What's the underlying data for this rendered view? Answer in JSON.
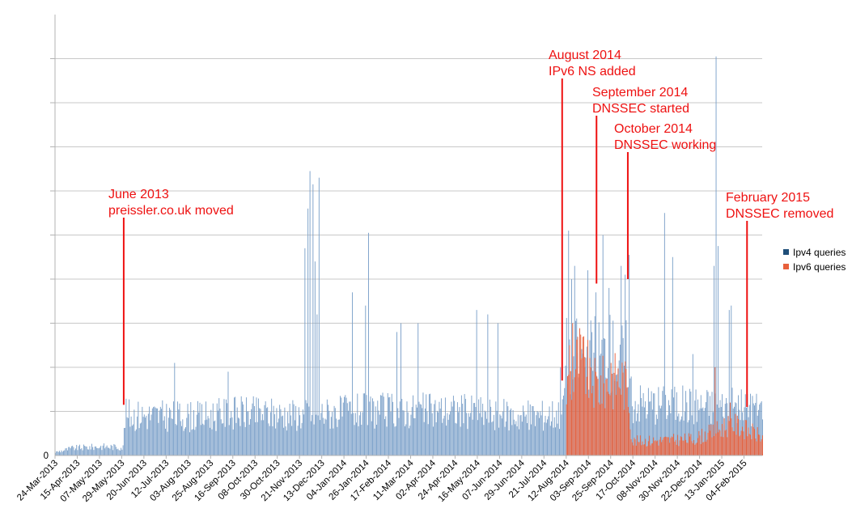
{
  "chart_data": {
    "type": "bar",
    "title": "",
    "xlabel": "",
    "ylabel": "",
    "ylim": [
      0,
      1000
    ],
    "y_tick_values": [
      0,
      100,
      200,
      300,
      400,
      500,
      600,
      700,
      800,
      900
    ],
    "y_tick_labels": [
      "0"
    ],
    "grid": true,
    "legend_position": "right",
    "x_range": [
      "2013-03-24",
      "2015-02-22"
    ],
    "x_tick_labels": [
      "24-Mar-2013",
      "15-Apr-2013",
      "07-May-2013",
      "29-May-2013",
      "20-Jun-2013",
      "12-Jul-2013",
      "03-Aug-2013",
      "25-Aug-2013",
      "16-Sep-2013",
      "08-Oct-2013",
      "30-Oct-2013",
      "21-Nov-2013",
      "13-Dec-2013",
      "04-Jan-2014",
      "26-Jan-2014",
      "17-Feb-2014",
      "11-Mar-2014",
      "02-Apr-2014",
      "24-Apr-2014",
      "16-May-2014",
      "07-Jun-2014",
      "29-Jun-2014",
      "21-Jul-2014",
      "12-Aug-2014",
      "03-Sep-2014",
      "25-Sep-2014",
      "17-Oct-2014",
      "08-Nov-2014",
      "30-Nov-2014",
      "22-Dec-2014",
      "13-Jan-2015",
      "04-Feb-2015"
    ],
    "series": [
      {
        "name": "Ipv4 queries",
        "color": "#7ba0c9",
        "level_points": [
          [
            "2013-03-24",
            8
          ],
          [
            "2013-04-10",
            18
          ],
          [
            "2013-05-10",
            22
          ],
          [
            "2013-05-30",
            20
          ],
          [
            "2013-06-01",
            100
          ],
          [
            "2013-08-15",
            95
          ],
          [
            "2013-09-15",
            105
          ],
          [
            "2013-11-20",
            100
          ],
          [
            "2014-02-01",
            110
          ],
          [
            "2014-05-01",
            110
          ],
          [
            "2014-07-01",
            95
          ],
          [
            "2014-08-08",
            105
          ],
          [
            "2014-08-12",
            250
          ],
          [
            "2014-10-12",
            250
          ],
          [
            "2014-10-16",
            130
          ],
          [
            "2015-02-22",
            115
          ]
        ],
        "spikes": [
          [
            "2013-07-20",
            210
          ],
          [
            "2013-09-11",
            190
          ],
          [
            "2013-11-26",
            470
          ],
          [
            "2013-11-29",
            560
          ],
          [
            "2013-12-01",
            645
          ],
          [
            "2013-12-04",
            615
          ],
          [
            "2013-12-06",
            440
          ],
          [
            "2013-12-08",
            320
          ],
          [
            "2013-12-10",
            630
          ],
          [
            "2014-01-12",
            370
          ],
          [
            "2014-01-25",
            340
          ],
          [
            "2014-01-28",
            505
          ],
          [
            "2014-02-25",
            280
          ],
          [
            "2014-03-01",
            300
          ],
          [
            "2014-03-18",
            300
          ],
          [
            "2014-05-15",
            330
          ],
          [
            "2014-05-26",
            320
          ],
          [
            "2014-06-05",
            300
          ],
          [
            "2014-08-06",
            200
          ],
          [
            "2014-08-14",
            510
          ],
          [
            "2014-08-17",
            400
          ],
          [
            "2014-08-20",
            430
          ],
          [
            "2014-09-02",
            420
          ],
          [
            "2014-09-10",
            370
          ],
          [
            "2014-09-17",
            500
          ],
          [
            "2014-09-23",
            380
          ],
          [
            "2014-10-05",
            430
          ],
          [
            "2014-10-09",
            410
          ],
          [
            "2014-10-13",
            455
          ],
          [
            "2014-11-17",
            550
          ],
          [
            "2014-11-25",
            450
          ],
          [
            "2014-12-15",
            230
          ],
          [
            "2015-01-07",
            905
          ],
          [
            "2015-01-05",
            430
          ],
          [
            "2015-01-09",
            475
          ],
          [
            "2015-01-20",
            330
          ],
          [
            "2015-01-22",
            340
          ],
          [
            "2015-02-10",
            140
          ]
        ]
      },
      {
        "name": "Ipv6 queries",
        "color": "#e8603c",
        "level_points": [
          [
            "2014-08-12",
            160
          ],
          [
            "2014-08-24",
            240
          ],
          [
            "2014-09-10",
            170
          ],
          [
            "2014-10-05",
            190
          ],
          [
            "2014-10-12",
            160
          ],
          [
            "2014-10-16",
            35
          ],
          [
            "2014-12-15",
            40
          ],
          [
            "2015-01-07",
            60
          ],
          [
            "2015-01-22",
            80
          ],
          [
            "2015-02-22",
            45
          ]
        ],
        "spikes": [
          [
            "2014-08-15",
            250
          ],
          [
            "2014-08-18",
            300
          ],
          [
            "2014-09-05",
            200
          ],
          [
            "2014-09-25",
            210
          ],
          [
            "2015-01-06",
            200
          ],
          [
            "2015-01-21",
            120
          ]
        ]
      }
    ],
    "annotations": [
      {
        "id": "june-2013",
        "lines": [
          "June 2013",
          "preissler.co.uk moved"
        ],
        "date": "2013-05-31",
        "y": 115
      },
      {
        "id": "aug-2014",
        "lines": [
          "August 2014",
          "IPv6 NS added"
        ],
        "date": "2014-08-08",
        "y": 170
      },
      {
        "id": "sep-2014",
        "lines": [
          "September 2014",
          "DNSSEC started"
        ],
        "date": "2014-09-11",
        "y": 390
      },
      {
        "id": "oct-2014",
        "lines": [
          "October 2014",
          "DNSSEC working"
        ],
        "date": "2014-10-12",
        "y": 400
      },
      {
        "id": "feb-2015",
        "lines": [
          "February 2015",
          "DNSSEC removed"
        ],
        "date": "2015-02-07",
        "y": 110
      }
    ],
    "annotation_color": "#ee1111"
  }
}
